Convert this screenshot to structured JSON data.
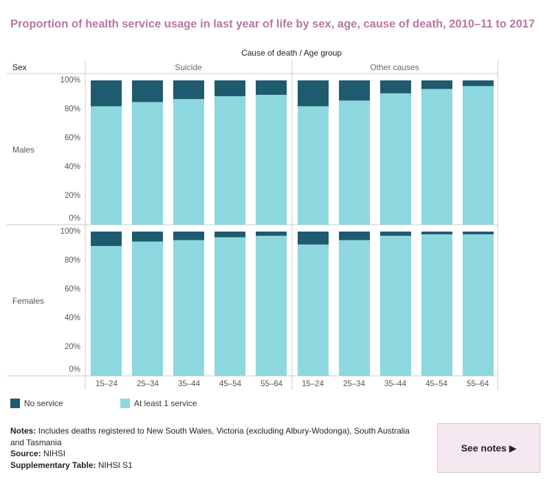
{
  "title": "Proportion of health service usage in last year of life by sex, age, cause of death, 2010–11 to 2017",
  "header": {
    "column_caption": "Cause of death  /  Age group",
    "sex_label": "Sex"
  },
  "colors": {
    "title": "#b7779e",
    "no_service": "#1e5b6e",
    "at_least_1_service": "#8dd8df",
    "see_notes_bg": "#f6e8f1"
  },
  "chart_data": {
    "type": "bar",
    "stacked": true,
    "panels": [
      "Suicide",
      "Other causes"
    ],
    "rows": [
      "Males",
      "Females"
    ],
    "categories": [
      "15–24",
      "25–34",
      "35–44",
      "45–54",
      "55–64"
    ],
    "y_ticks": [
      "0%",
      "20%",
      "40%",
      "60%",
      "80%",
      "100%"
    ],
    "ylim": [
      0,
      100
    ],
    "series_names": [
      "No service",
      "At least 1 service"
    ],
    "values": {
      "Males": {
        "Suicide": [
          82,
          85,
          87,
          89,
          90
        ],
        "Other causes": [
          82,
          86,
          91,
          94,
          96
        ]
      },
      "Females": {
        "Suicide": [
          90,
          93,
          94,
          96,
          97
        ],
        "Other causes": [
          91,
          94,
          97,
          98,
          98
        ]
      }
    }
  },
  "legend": {
    "no_service": "No service",
    "at_least_1_service": "At least 1 service"
  },
  "notes": {
    "notes_label": "Notes:",
    "notes_text": " Includes deaths registered to New South Wales, Victoria (excluding Albury-Wodonga), South Australia and Tasmania",
    "source_label": "Source:",
    "source_text": " NIHSI",
    "supp_label": "Supplementary Table:",
    "supp_text": " NIHSI S1"
  },
  "see_notes_button": "See notes ▶"
}
